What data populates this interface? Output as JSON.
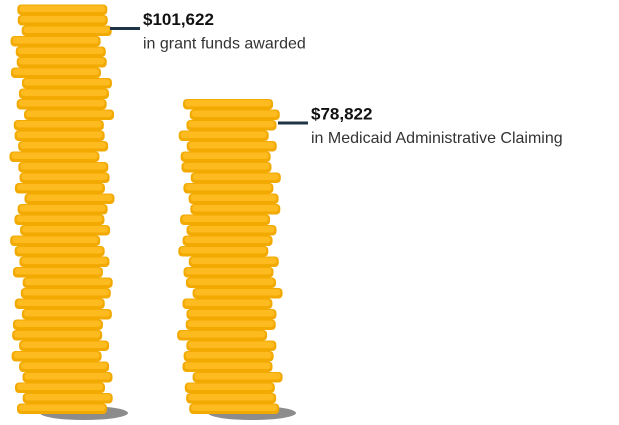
{
  "chart_data": {
    "type": "bar",
    "categories": [
      "in grant funds awarded",
      "in Medicaid Administrative Claiming"
    ],
    "values": [
      101622,
      78822
    ],
    "value_labels": [
      "$101,622",
      "$78,822"
    ],
    "color": "#fdbb1f"
  }
}
